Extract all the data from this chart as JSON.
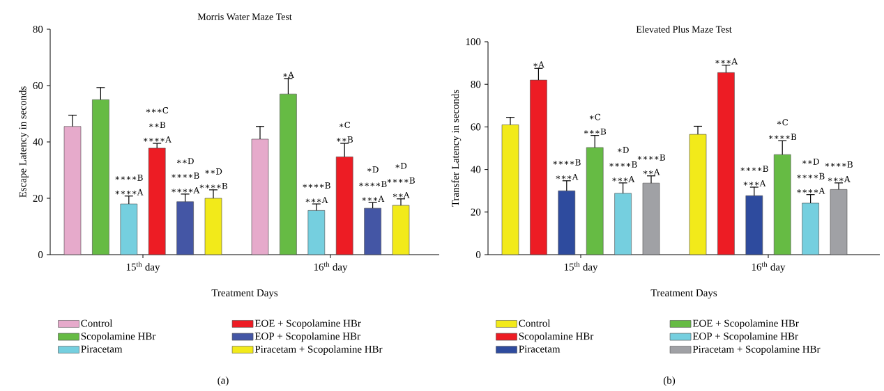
{
  "chart_data": [
    {
      "type": "bar",
      "title": "Morris Water Maze Test",
      "xlabel": "Treatment Days",
      "ylabel": "Escape Latency in seconds",
      "categories": [
        "15$^{th}$ day",
        "16$^{th}$ day"
      ],
      "ylim": [
        0,
        80
      ],
      "yticks": [
        0,
        20,
        40,
        60,
        80
      ],
      "legend": "bottom",
      "annotations": [
        "(a)"
      ],
      "series": [
        {
          "name": "Control",
          "color": "#e6aacb",
          "values": [
            45.5,
            41
          ],
          "errors": [
            4,
            4.5
          ],
          "value_labels": [
            null,
            null
          ]
        },
        {
          "name": "Scopolamine HBr",
          "color": "#66bb44",
          "values": [
            55,
            57
          ],
          "errors": [
            4.3,
            5.5
          ],
          "value_labels": [
            null,
            "∗A"
          ]
        },
        {
          "name": "Piracetam",
          "color": "#75cfdf",
          "values": [
            18,
            15.7
          ],
          "errors": [
            2.8,
            2.3
          ],
          "value_labels": [
            "∗∗∗∗B ∗∗∗∗A",
            "∗∗∗∗B ∗∗∗A"
          ]
        },
        {
          "name": "EOE + Scopolamine HBr",
          "color": "#ed1c24",
          "values": [
            37.8,
            34.7
          ],
          "errors": [
            1.7,
            4.8
          ],
          "value_labels": [
            "∗∗∗C ∗∗B ∗∗∗∗A",
            "∗C ∗∗B"
          ]
        },
        {
          "name": "EOP + Scopolamine HBr",
          "color": "#4456a5",
          "values": [
            18.8,
            16.5
          ],
          "errors": [
            2.7,
            2
          ],
          "value_labels": [
            "∗∗D ∗∗∗∗B ∗∗∗∗A",
            "∗D ∗∗∗∗B ∗∗∗A"
          ]
        },
        {
          "name": "Piracetam + Scopolamine HBr",
          "color": "#f2ea1a",
          "values": [
            20,
            17.5
          ],
          "errors": [
            3,
            2.3
          ],
          "value_labels": [
            "∗∗D ∗∗∗∗B",
            "∗D ∗∗∗∗B ∗∗A"
          ]
        }
      ]
    },
    {
      "type": "bar",
      "title": "Elevated Plus Maze Test",
      "xlabel": "Treatment Days",
      "ylabel": "Transfer Latency in seconds",
      "categories": [
        "15$^{th}$ day",
        "16$^{th}$ day"
      ],
      "ylim": [
        0,
        100
      ],
      "yticks": [
        0,
        20,
        40,
        60,
        80,
        100
      ],
      "legend": "bottom",
      "annotations": [
        "(b)"
      ],
      "series": [
        {
          "name": "Control",
          "color": "#f2ea1a",
          "values": [
            61,
            56.5
          ],
          "errors": [
            3.5,
            3.8
          ],
          "value_labels": [
            null,
            null
          ]
        },
        {
          "name": "Scopolamine HBr",
          "color": "#ed1c24",
          "values": [
            82,
            85.5
          ],
          "errors": [
            5.5,
            3.5
          ],
          "value_labels": [
            "∗A",
            "∗∗∗A"
          ]
        },
        {
          "name": "Piracetam",
          "color": "#2e4b9e",
          "values": [
            30,
            27.7
          ],
          "errors": [
            4.7,
            4
          ],
          "value_labels": [
            "∗∗∗∗B ∗∗∗A",
            "∗∗∗∗B ∗∗∗A"
          ]
        },
        {
          "name": "EOE + Scopolamine HBr",
          "color": "#66bb44",
          "values": [
            50.3,
            47
          ],
          "errors": [
            5.7,
            6.5
          ],
          "value_labels": [
            "∗C ∗∗∗B",
            "∗C ∗∗∗∗B"
          ]
        },
        {
          "name": "EOP + Scopolamine HBr",
          "color": "#75cfdf",
          "values": [
            28.8,
            24.2
          ],
          "errors": [
            4.9,
            4
          ],
          "value_labels": [
            "∗D ∗∗∗∗B ∗∗∗A",
            "∗∗D ∗∗∗∗B ∗∗∗∗A"
          ]
        },
        {
          "name": "Piracetam + Scopolamine HBr",
          "color": "#a0a1a5",
          "values": [
            33.6,
            30.6
          ],
          "errors": [
            3.4,
            3.1
          ],
          "value_labels": [
            "∗∗∗∗B ∗∗A",
            "∗∗∗∗B ∗∗∗A"
          ]
        }
      ]
    }
  ]
}
